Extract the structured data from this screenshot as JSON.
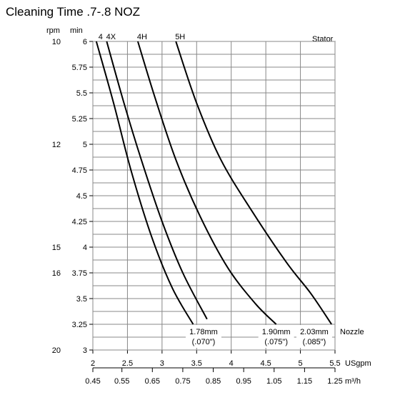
{
  "chart_data": {
    "type": "line",
    "title": "Cleaning Time .7-.8 NOZ",
    "xlabel_primary": "USgpm",
    "xlabel_secondary": "m³/h",
    "ylabel_left_rpm": "rpm",
    "ylabel_left_min": "min",
    "stator_label": "Stator",
    "nozzle_label": "Nozzle",
    "xlim": [
      2,
      5.5
    ],
    "ylim": [
      3,
      6
    ],
    "grid": true,
    "x_ticks": [
      2,
      2.5,
      3,
      3.5,
      4,
      4.5,
      5,
      5.5
    ],
    "x_tick_labels": [
      "2",
      "2.5",
      "3",
      "3.5",
      "4",
      "4.5",
      "5",
      "5.5"
    ],
    "x2_ticks": [
      {
        "value": 2,
        "label": "0.45"
      },
      {
        "value": 2.42,
        "label": "0.55"
      },
      {
        "value": 2.86,
        "label": "0.65"
      },
      {
        "value": 3.3,
        "label": "0.75"
      },
      {
        "value": 3.74,
        "label": "0.85"
      },
      {
        "value": 4.18,
        "label": "0.95"
      },
      {
        "value": 4.62,
        "label": "1.05"
      },
      {
        "value": 5.06,
        "label": "1.15"
      },
      {
        "value": 5.5,
        "label": "1.25"
      }
    ],
    "y_ticks": [
      3,
      3.25,
      3.5,
      3.75,
      4,
      4.25,
      4.5,
      4.75,
      5,
      5.25,
      5.5,
      5.75,
      6
    ],
    "y_tick_labels": [
      "3",
      "3.25",
      "3.5",
      "3.75",
      "4",
      "4.25",
      "4.5",
      "4.75",
      "5",
      "5.25",
      "5.5",
      "5.75",
      "6"
    ],
    "rpm_ticks": [
      {
        "y": 6,
        "label": "10"
      },
      {
        "y": 5,
        "label": "12"
      },
      {
        "y": 4,
        "label": "15"
      },
      {
        "y": 3.75,
        "label": "16"
      },
      {
        "y": 3,
        "label": "20"
      }
    ],
    "series": [
      {
        "name": "4",
        "points": [
          [
            2.05,
            6.0
          ],
          [
            2.3,
            5.4
          ],
          [
            2.55,
            4.75
          ],
          [
            2.85,
            4.1
          ],
          [
            3.15,
            3.6
          ],
          [
            3.45,
            3.25
          ]
        ]
      },
      {
        "name": "4X",
        "points": [
          [
            2.2,
            6.0
          ],
          [
            2.45,
            5.4
          ],
          [
            2.7,
            4.85
          ],
          [
            3.0,
            4.25
          ],
          [
            3.3,
            3.75
          ],
          [
            3.65,
            3.3
          ]
        ]
      },
      {
        "name": "4H",
        "points": [
          [
            2.65,
            6.0
          ],
          [
            2.9,
            5.45
          ],
          [
            3.2,
            4.85
          ],
          [
            3.55,
            4.3
          ],
          [
            3.95,
            3.8
          ],
          [
            4.35,
            3.45
          ],
          [
            4.65,
            3.25
          ]
        ]
      },
      {
        "name": "5H",
        "points": [
          [
            3.2,
            6.0
          ],
          [
            3.5,
            5.4
          ],
          [
            3.85,
            4.85
          ],
          [
            4.3,
            4.35
          ],
          [
            4.8,
            3.85
          ],
          [
            5.15,
            3.55
          ],
          [
            5.45,
            3.25
          ]
        ]
      }
    ],
    "nozzle_labels": [
      {
        "line1": "1.78mm",
        "line2": "(.070\")",
        "x": 3.6
      },
      {
        "line1": "1.90mm",
        "line2": "(.075\")",
        "x": 4.65
      },
      {
        "line1": "2.03mm",
        "line2": "(.085\")",
        "x": 5.2
      }
    ]
  }
}
